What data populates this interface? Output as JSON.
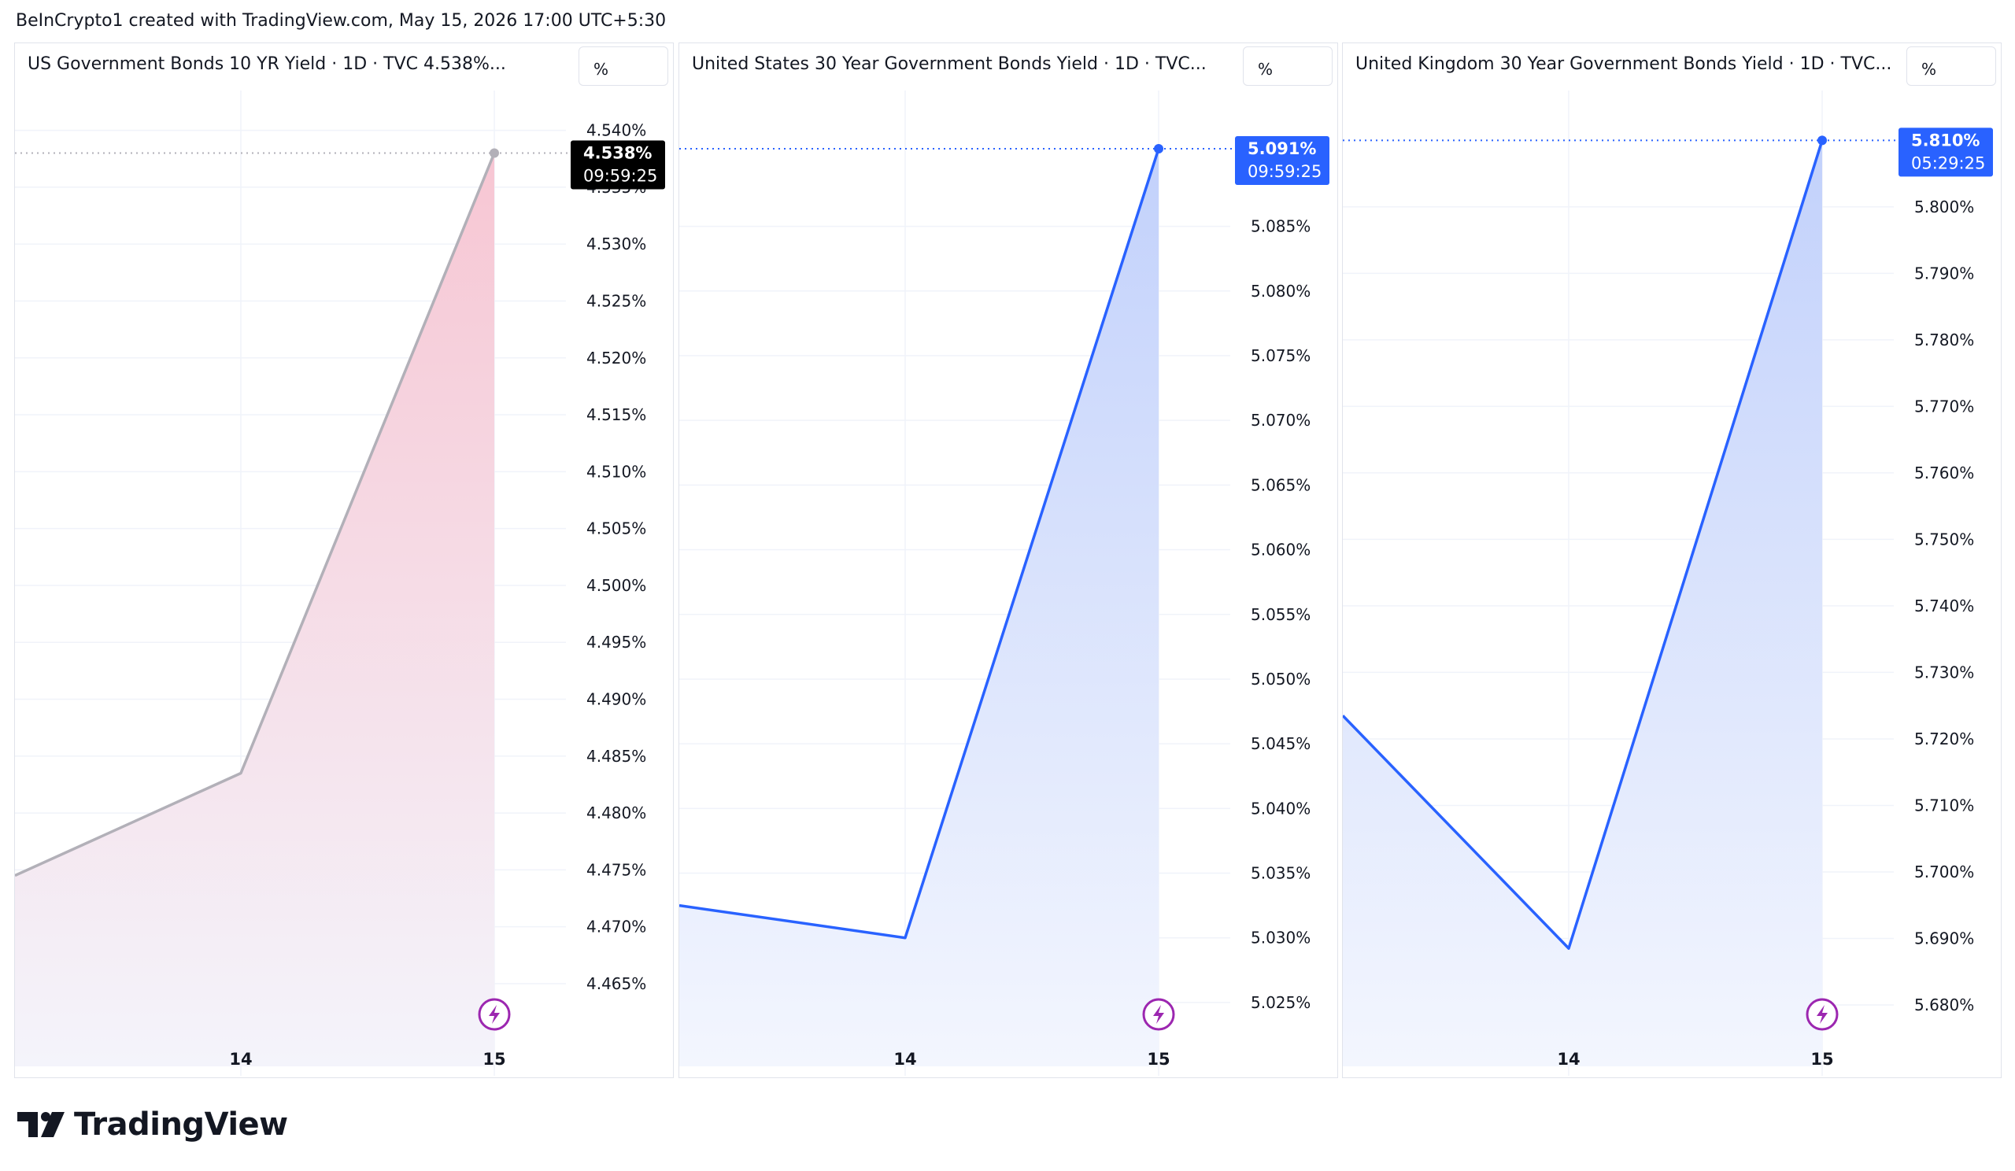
{
  "header": {
    "text": "BeInCrypto1 created with TradingView.com, May 15, 2026 17:00 UTC+5:30"
  },
  "footer": {
    "logo_text": "TradingView"
  },
  "chart_data": [
    {
      "type": "area",
      "title": "US Government Bonds 10 YR Yield · 1D · TVC  4.538%...",
      "unit_button": "%",
      "color": "#b2b0b8",
      "fill_top": "#f7c6d3",
      "fill_bottom": "#f4f4fb",
      "x": [
        "13",
        "14",
        "15"
      ],
      "x_ticks": [
        "14",
        "15"
      ],
      "values": [
        4.4745,
        4.4835,
        4.538
      ],
      "ylim": [
        4.4605,
        4.5435
      ],
      "y_ticks": [
        "4.540%",
        "4.535%",
        "4.530%",
        "4.525%",
        "4.520%",
        "4.515%",
        "4.510%",
        "4.505%",
        "4.500%",
        "4.495%",
        "4.490%",
        "4.485%",
        "4.480%",
        "4.475%",
        "4.470%",
        "4.465%"
      ],
      "y_tick_values": [
        4.54,
        4.535,
        4.53,
        4.525,
        4.52,
        4.515,
        4.51,
        4.505,
        4.5,
        4.495,
        4.49,
        4.485,
        4.48,
        4.475,
        4.47,
        4.465
      ],
      "last_price": {
        "value": "4.538%",
        "countdown": "09:59:25",
        "bg": "#000000"
      }
    },
    {
      "type": "area",
      "title": "United States 30 Year Government Bonds Yield · 1D · TVC...",
      "unit_button": "%",
      "color": "#2962ff",
      "fill_top": "#c2d1fb",
      "fill_bottom": "#f3f6fe",
      "x": [
        "13",
        "14",
        "15"
      ],
      "x_ticks": [
        "14",
        "15"
      ],
      "values": [
        5.0325,
        5.03,
        5.091
      ],
      "ylim": [
        5.0225,
        5.0955
      ],
      "y_ticks": [
        "5.085%",
        "5.080%",
        "5.075%",
        "5.070%",
        "5.065%",
        "5.060%",
        "5.055%",
        "5.050%",
        "5.045%",
        "5.040%",
        "5.035%",
        "5.030%",
        "5.025%"
      ],
      "y_tick_values": [
        5.085,
        5.08,
        5.075,
        5.07,
        5.065,
        5.06,
        5.055,
        5.05,
        5.045,
        5.04,
        5.035,
        5.03,
        5.025
      ],
      "last_price": {
        "value": "5.091%",
        "countdown": "09:59:25",
        "bg": "#2962ff"
      }
    },
    {
      "type": "area",
      "title": "United Kingdom 30 Year Government Bonds Yield · 1D · TVC...",
      "unit_button": "%",
      "color": "#2962ff",
      "fill_top": "#c2d1fb",
      "fill_bottom": "#f3f6fe",
      "x": [
        "13",
        "14",
        "15"
      ],
      "x_ticks": [
        "14",
        "15"
      ],
      "values": [
        5.7235,
        5.6885,
        5.81
      ],
      "ylim": [
        5.6755,
        5.8175
      ],
      "y_ticks": [
        "5.800%",
        "5.790%",
        "5.780%",
        "5.770%",
        "5.760%",
        "5.750%",
        "5.740%",
        "5.730%",
        "5.720%",
        "5.710%",
        "5.700%",
        "5.690%",
        "5.680%"
      ],
      "y_tick_values": [
        5.8,
        5.79,
        5.78,
        5.77,
        5.76,
        5.75,
        5.74,
        5.73,
        5.72,
        5.71,
        5.7,
        5.69,
        5.68
      ],
      "last_price": {
        "value": "5.810%",
        "countdown": "05:29:25",
        "bg": "#2962ff"
      }
    }
  ]
}
